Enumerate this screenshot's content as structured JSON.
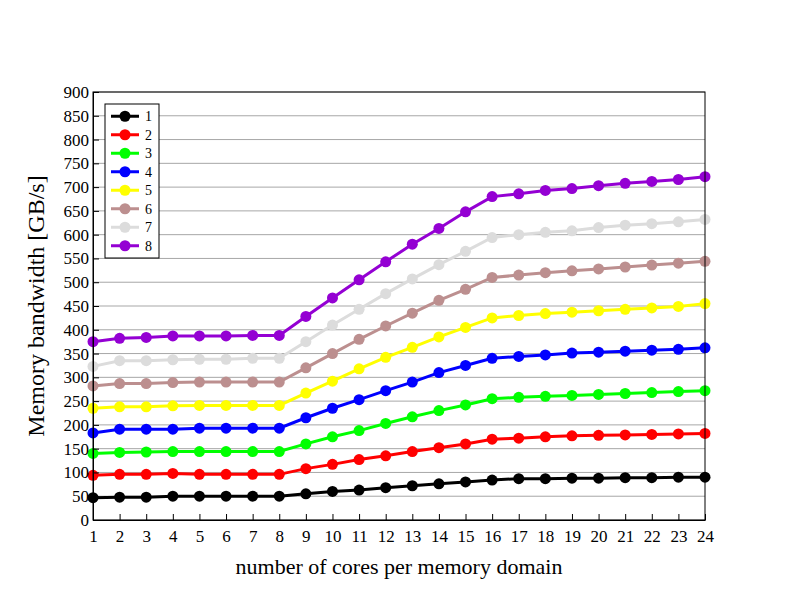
{
  "chart_data": {
    "type": "line",
    "x_label": "number of cores per memory domain",
    "y_label": "Memory bandwidth [GB/s]",
    "x": [
      1,
      2,
      3,
      4,
      5,
      6,
      7,
      8,
      9,
      10,
      11,
      12,
      13,
      14,
      15,
      16,
      17,
      18,
      19,
      20,
      21,
      22,
      23,
      24
    ],
    "xlim": [
      1,
      24
    ],
    "xticks": [
      1,
      2,
      3,
      4,
      5,
      6,
      7,
      8,
      9,
      10,
      11,
      12,
      13,
      14,
      15,
      16,
      17,
      18,
      19,
      20,
      21,
      22,
      23,
      24
    ],
    "ylim": [
      0,
      900
    ],
    "yticks": [
      0,
      50,
      100,
      150,
      200,
      250,
      300,
      350,
      400,
      450,
      500,
      550,
      600,
      650,
      700,
      750,
      800,
      850,
      900
    ],
    "grid": true,
    "legend": "upper left",
    "marker": "circle",
    "line_style": "solid",
    "series": [
      {
        "name": "1",
        "color": "#000000",
        "values": [
          47,
          48,
          48,
          50,
          50,
          50,
          50,
          50,
          55,
          60,
          63,
          68,
          72,
          76,
          80,
          84,
          87,
          87,
          88,
          88,
          89,
          89,
          90,
          90
        ]
      },
      {
        "name": "2",
        "color": "#ff0000",
        "values": [
          94,
          96,
          96,
          98,
          96,
          96,
          96,
          96,
          108,
          117,
          127,
          135,
          144,
          152,
          160,
          170,
          172,
          175,
          177,
          178,
          179,
          180,
          181,
          182
        ]
      },
      {
        "name": "3",
        "color": "#00ff00",
        "values": [
          140,
          142,
          143,
          144,
          144,
          144,
          144,
          144,
          160,
          175,
          188,
          203,
          217,
          230,
          242,
          255,
          258,
          260,
          262,
          264,
          266,
          268,
          270,
          272
        ]
      },
      {
        "name": "4",
        "color": "#0000ff",
        "values": [
          183,
          191,
          191,
          191,
          193,
          193,
          193,
          193,
          215,
          235,
          253,
          272,
          290,
          310,
          325,
          340,
          344,
          347,
          351,
          353,
          355,
          357,
          359,
          362
        ]
      },
      {
        "name": "5",
        "color": "#ffff00",
        "values": [
          235,
          238,
          238,
          240,
          241,
          241,
          241,
          241,
          267,
          292,
          318,
          342,
          363,
          385,
          405,
          425,
          430,
          434,
          437,
          440,
          443,
          446,
          449,
          455
        ]
      },
      {
        "name": "6",
        "color": "#bc8f8f",
        "values": [
          282,
          287,
          287,
          289,
          290,
          290,
          290,
          290,
          320,
          350,
          380,
          408,
          435,
          462,
          485,
          510,
          515,
          520,
          524,
          528,
          532,
          536,
          540,
          544
        ]
      },
      {
        "name": "7",
        "color": "#dcdcdc",
        "values": [
          323,
          335,
          335,
          337,
          338,
          338,
          340,
          340,
          375,
          410,
          443,
          476,
          507,
          537,
          565,
          594,
          600,
          605,
          608,
          615,
          620,
          623,
          627,
          632
        ]
      },
      {
        "name": "8",
        "color": "#9400d3",
        "values": [
          375,
          382,
          384,
          387,
          387,
          387,
          388,
          388,
          428,
          467,
          505,
          543,
          580,
          613,
          648,
          680,
          686,
          693,
          697,
          703,
          708,
          712,
          716,
          722
        ]
      }
    ]
  }
}
